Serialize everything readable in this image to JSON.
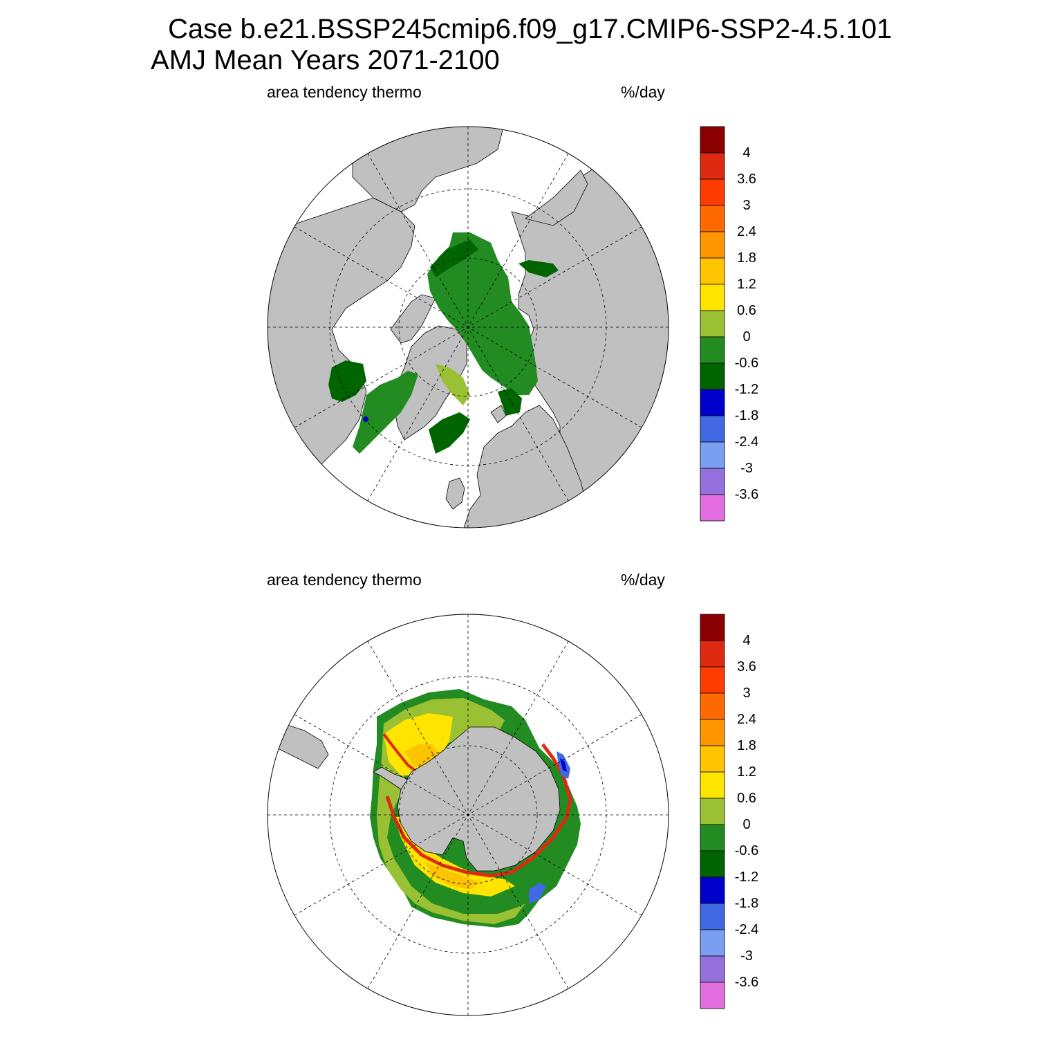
{
  "title": {
    "line1": "Case b.e21.BSSP245cmip6.f09_g17.CMIP6-SSP2-4.5.101",
    "line2": "AMJ Mean   Years 2071-2100"
  },
  "panels": [
    {
      "id": "north",
      "hemisphere": "Northern Hemisphere polar stereographic",
      "left_title": "area tendency thermo",
      "right_title": "%/day"
    },
    {
      "id": "south",
      "hemisphere": "Southern Hemisphere polar stereographic",
      "left_title": "area tendency thermo",
      "right_title": "%/day"
    }
  ],
  "colorbar": {
    "labels": [
      "4",
      "3.6",
      "3",
      "2.4",
      "1.8",
      "1.2",
      "0.6",
      "0",
      "-0.6",
      "-1.2",
      "-1.8",
      "-2.4",
      "-3",
      "-3.6"
    ],
    "colors": [
      "#8b0000",
      "#dd2a10",
      "#ff3c00",
      "#ff6a00",
      "#ff9600",
      "#ffc400",
      "#ffe400",
      "#9ac033",
      "#228b22",
      "#006400",
      "#0000cd",
      "#4169e1",
      "#7b9ff0",
      "#9370db",
      "#e26ee0"
    ]
  },
  "map_colors": {
    "land": "#c0c0c0",
    "ocean": "#ffffff",
    "coast": "#000000"
  }
}
